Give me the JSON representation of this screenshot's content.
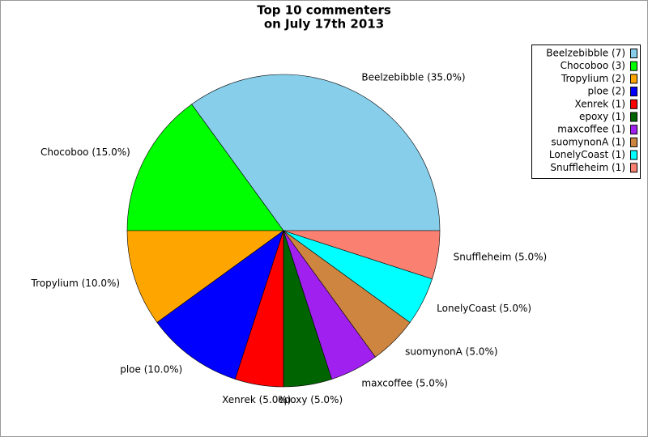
{
  "chart_data": {
    "type": "pie",
    "title": [
      "Top 10 commenters",
      "on July 17th 2013"
    ],
    "categories": [
      "Beelzebibble (7)",
      "Chocoboo (3)",
      "Tropylium (2)",
      "ploe (2)",
      "Xenrek (1)",
      "epoxy (1)",
      "maxcoffee (1)",
      "suomynonA (1)",
      "LonelyCoast (1)",
      "Snuffleheim (1)"
    ],
    "values": [
      35,
      15,
      10,
      10,
      5,
      5,
      5,
      5,
      5,
      5
    ],
    "value_labels": [
      "Beelzebibble (35.0%)",
      "Chocoboo (15.0%)",
      "Tropylium (10.0%)",
      "ploe (10.0%)",
      "Xenrek (5.0%)",
      "epoxy (5.0%)",
      "maxcoffee (5.0%)",
      "suomynonA (5.0%)",
      "LonelyCoast (5.0%)",
      "Snuffleheim (5.0%)"
    ],
    "colors": [
      "#87ceeb",
      "#00ff00",
      "#ffa500",
      "#0000ff",
      "#ff0000",
      "#006400",
      "#a020f0",
      "#cd853f",
      "#00ffff",
      "#fa8072"
    ],
    "legend": "upper right"
  }
}
